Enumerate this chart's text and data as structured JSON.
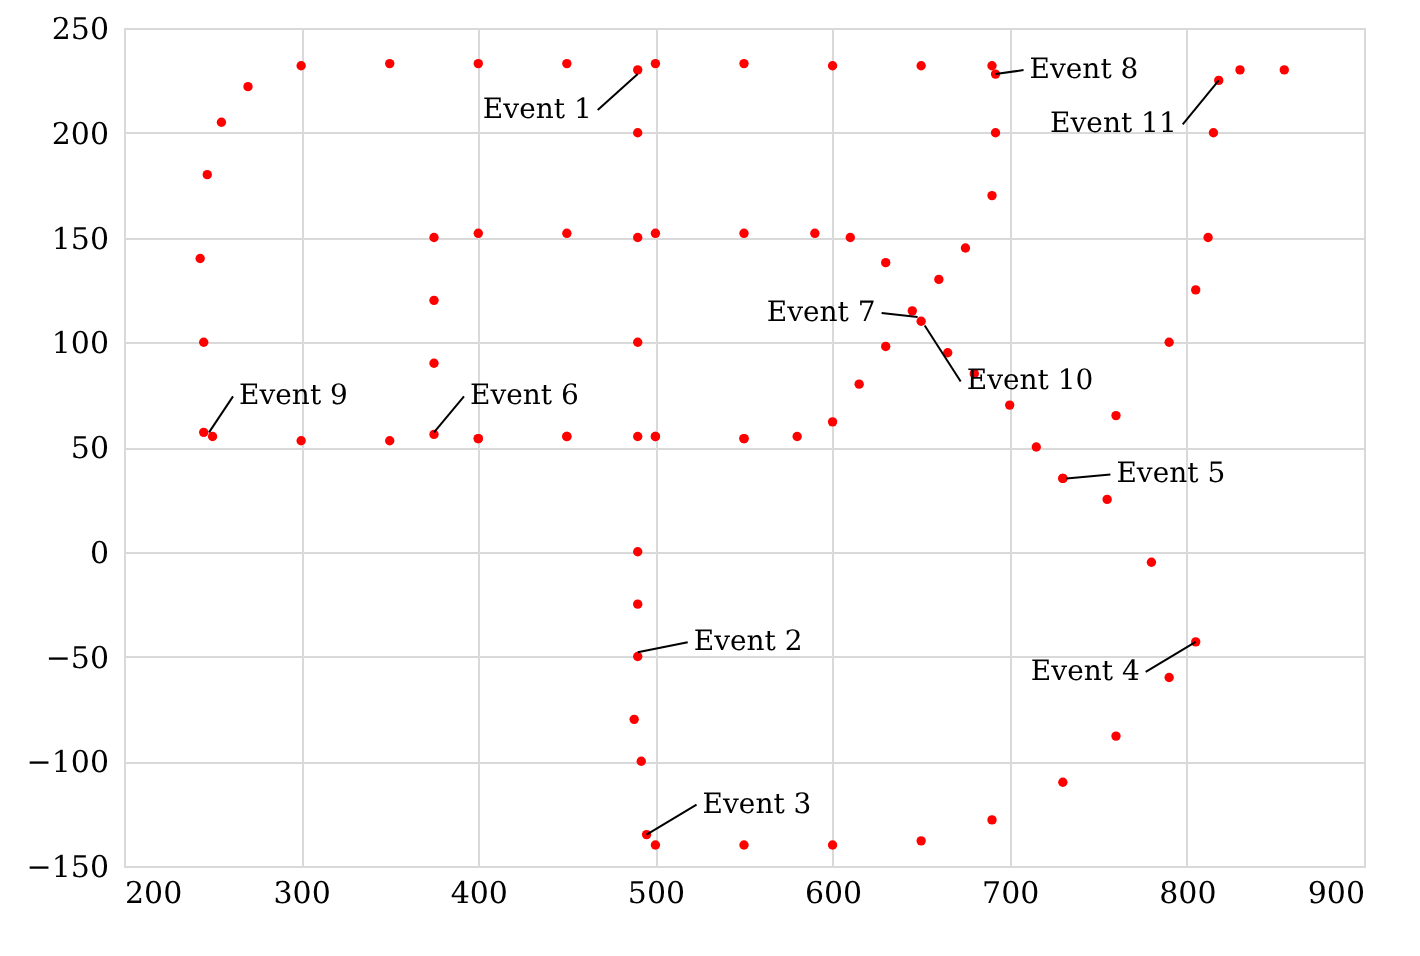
{
  "chart_data": {
    "type": "scatter",
    "marker": "circle",
    "grid": true,
    "xlim": [
      200,
      900
    ],
    "xticks": [
      200,
      300,
      400,
      500,
      600,
      700,
      800,
      900
    ],
    "ylim": [
      -150,
      250
    ],
    "yticks": [
      -150,
      -100,
      -50,
      0,
      50,
      100,
      150,
      200,
      250
    ],
    "series": [
      {
        "color": "#ff0000",
        "x": [
          490,
          490,
          490,
          490,
          490,
          490,
          490,
          490,
          488,
          492,
          495,
          500,
          550,
          600,
          650,
          690,
          730,
          760,
          790,
          805,
          780,
          755,
          730,
          715,
          700,
          680,
          665,
          650,
          630,
          610,
          590,
          550,
          500,
          450,
          400,
          375,
          375,
          375,
          375,
          400,
          450,
          500,
          550,
          580,
          600,
          615,
          630,
          645,
          660,
          675,
          690,
          692,
          692,
          690,
          650,
          600,
          550,
          500,
          450,
          400,
          350,
          300,
          270,
          255,
          247,
          243,
          245,
          245,
          250,
          300,
          350,
          400,
          450,
          500,
          550,
          730,
          760,
          790,
          805,
          812,
          815,
          818,
          830,
          855
        ],
        "values": [
          230,
          200,
          150,
          100,
          55,
          0,
          -50,
          -25,
          -80,
          -100,
          -135,
          -140,
          -140,
          -140,
          -138,
          -128,
          -110,
          -88,
          -60,
          -43,
          -5,
          25,
          35,
          50,
          70,
          85,
          95,
          110,
          138,
          150,
          152,
          152,
          152,
          152,
          152,
          150,
          120,
          90,
          56,
          54,
          55,
          55,
          54,
          55,
          62,
          80,
          98,
          115,
          130,
          145,
          170,
          200,
          228,
          232,
          232,
          232,
          233,
          233,
          233,
          233,
          233,
          232,
          222,
          205,
          180,
          140,
          100,
          57,
          55,
          53,
          53,
          54,
          55,
          55,
          54,
          35,
          65,
          100,
          125,
          150,
          200,
          225,
          230,
          230
        ]
      }
    ],
    "annotations": [
      {
        "text": "Event 1",
        "x": 490,
        "y": 228
      },
      {
        "text": "Event 2",
        "x": 490,
        "y": -48
      },
      {
        "text": "Event 3",
        "x": 495,
        "y": -135
      },
      {
        "text": "Event 4",
        "x": 805,
        "y": -43
      },
      {
        "text": "Event 5",
        "x": 732,
        "y": 35
      },
      {
        "text": "Event 6",
        "x": 375,
        "y": 57
      },
      {
        "text": "Event 7",
        "x": 648,
        "y": 112
      },
      {
        "text": "Event 8",
        "x": 692,
        "y": 228
      },
      {
        "text": "Event 9",
        "x": 248,
        "y": 57
      },
      {
        "text": "Event 10",
        "x": 652,
        "y": 108
      },
      {
        "text": "Event 11",
        "x": 818,
        "y": 225
      }
    ]
  }
}
